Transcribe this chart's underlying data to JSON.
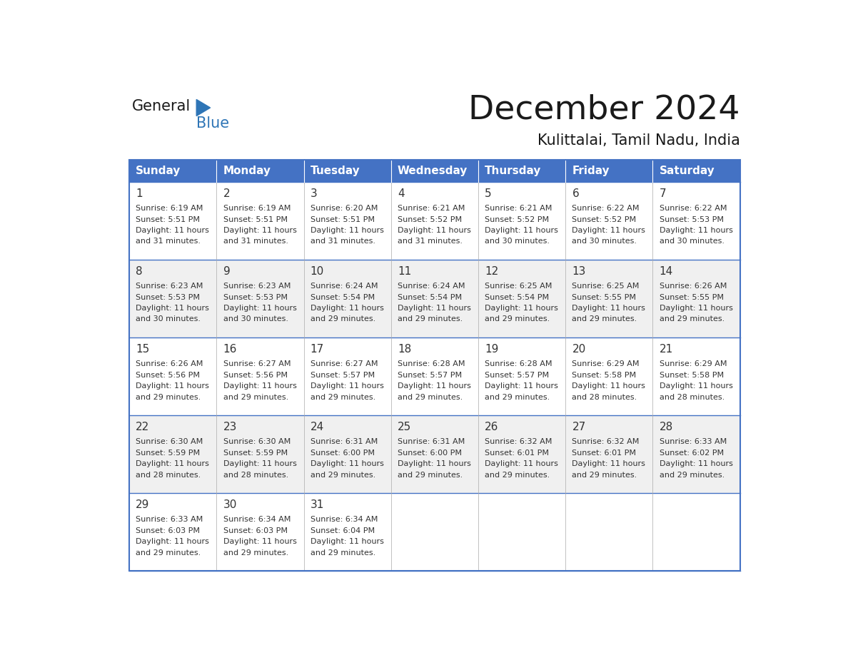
{
  "title": "December 2024",
  "subtitle": "Kulittalai, Tamil Nadu, India",
  "days_of_week": [
    "Sunday",
    "Monday",
    "Tuesday",
    "Wednesday",
    "Thursday",
    "Friday",
    "Saturday"
  ],
  "header_bg": "#4472C4",
  "header_text": "#FFFFFF",
  "cell_bg_odd": "#FFFFFF",
  "cell_bg_even": "#F0F0F0",
  "row_border_color": "#4472C4",
  "col_border_color": "#CCCCCC",
  "text_color": "#333333",
  "logo_black": "#1a1a1a",
  "logo_blue": "#2E75B6",
  "title_color": "#1a1a1a",
  "subtitle_color": "#1a1a1a",
  "calendar_data": [
    [
      {
        "day": 1,
        "sunrise": "6:19 AM",
        "sunset": "5:51 PM",
        "daylight": "11 hours and 31 minutes."
      },
      {
        "day": 2,
        "sunrise": "6:19 AM",
        "sunset": "5:51 PM",
        "daylight": "11 hours and 31 minutes."
      },
      {
        "day": 3,
        "sunrise": "6:20 AM",
        "sunset": "5:51 PM",
        "daylight": "11 hours and 31 minutes."
      },
      {
        "day": 4,
        "sunrise": "6:21 AM",
        "sunset": "5:52 PM",
        "daylight": "11 hours and 31 minutes."
      },
      {
        "day": 5,
        "sunrise": "6:21 AM",
        "sunset": "5:52 PM",
        "daylight": "11 hours and 30 minutes."
      },
      {
        "day": 6,
        "sunrise": "6:22 AM",
        "sunset": "5:52 PM",
        "daylight": "11 hours and 30 minutes."
      },
      {
        "day": 7,
        "sunrise": "6:22 AM",
        "sunset": "5:53 PM",
        "daylight": "11 hours and 30 minutes."
      }
    ],
    [
      {
        "day": 8,
        "sunrise": "6:23 AM",
        "sunset": "5:53 PM",
        "daylight": "11 hours and 30 minutes."
      },
      {
        "day": 9,
        "sunrise": "6:23 AM",
        "sunset": "5:53 PM",
        "daylight": "11 hours and 30 minutes."
      },
      {
        "day": 10,
        "sunrise": "6:24 AM",
        "sunset": "5:54 PM",
        "daylight": "11 hours and 29 minutes."
      },
      {
        "day": 11,
        "sunrise": "6:24 AM",
        "sunset": "5:54 PM",
        "daylight": "11 hours and 29 minutes."
      },
      {
        "day": 12,
        "sunrise": "6:25 AM",
        "sunset": "5:54 PM",
        "daylight": "11 hours and 29 minutes."
      },
      {
        "day": 13,
        "sunrise": "6:25 AM",
        "sunset": "5:55 PM",
        "daylight": "11 hours and 29 minutes."
      },
      {
        "day": 14,
        "sunrise": "6:26 AM",
        "sunset": "5:55 PM",
        "daylight": "11 hours and 29 minutes."
      }
    ],
    [
      {
        "day": 15,
        "sunrise": "6:26 AM",
        "sunset": "5:56 PM",
        "daylight": "11 hours and 29 minutes."
      },
      {
        "day": 16,
        "sunrise": "6:27 AM",
        "sunset": "5:56 PM",
        "daylight": "11 hours and 29 minutes."
      },
      {
        "day": 17,
        "sunrise": "6:27 AM",
        "sunset": "5:57 PM",
        "daylight": "11 hours and 29 minutes."
      },
      {
        "day": 18,
        "sunrise": "6:28 AM",
        "sunset": "5:57 PM",
        "daylight": "11 hours and 29 minutes."
      },
      {
        "day": 19,
        "sunrise": "6:28 AM",
        "sunset": "5:57 PM",
        "daylight": "11 hours and 29 minutes."
      },
      {
        "day": 20,
        "sunrise": "6:29 AM",
        "sunset": "5:58 PM",
        "daylight": "11 hours and 28 minutes."
      },
      {
        "day": 21,
        "sunrise": "6:29 AM",
        "sunset": "5:58 PM",
        "daylight": "11 hours and 28 minutes."
      }
    ],
    [
      {
        "day": 22,
        "sunrise": "6:30 AM",
        "sunset": "5:59 PM",
        "daylight": "11 hours and 28 minutes."
      },
      {
        "day": 23,
        "sunrise": "6:30 AM",
        "sunset": "5:59 PM",
        "daylight": "11 hours and 28 minutes."
      },
      {
        "day": 24,
        "sunrise": "6:31 AM",
        "sunset": "6:00 PM",
        "daylight": "11 hours and 29 minutes."
      },
      {
        "day": 25,
        "sunrise": "6:31 AM",
        "sunset": "6:00 PM",
        "daylight": "11 hours and 29 minutes."
      },
      {
        "day": 26,
        "sunrise": "6:32 AM",
        "sunset": "6:01 PM",
        "daylight": "11 hours and 29 minutes."
      },
      {
        "day": 27,
        "sunrise": "6:32 AM",
        "sunset": "6:01 PM",
        "daylight": "11 hours and 29 minutes."
      },
      {
        "day": 28,
        "sunrise": "6:33 AM",
        "sunset": "6:02 PM",
        "daylight": "11 hours and 29 minutes."
      }
    ],
    [
      {
        "day": 29,
        "sunrise": "6:33 AM",
        "sunset": "6:03 PM",
        "daylight": "11 hours and 29 minutes."
      },
      {
        "day": 30,
        "sunrise": "6:34 AM",
        "sunset": "6:03 PM",
        "daylight": "11 hours and 29 minutes."
      },
      {
        "day": 31,
        "sunrise": "6:34 AM",
        "sunset": "6:04 PM",
        "daylight": "11 hours and 29 minutes."
      },
      null,
      null,
      null,
      null
    ]
  ]
}
